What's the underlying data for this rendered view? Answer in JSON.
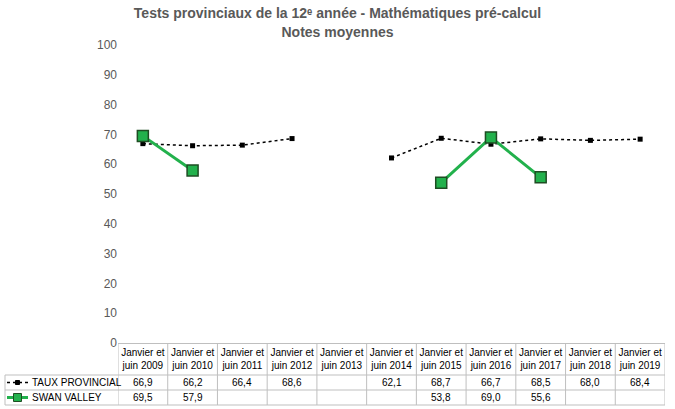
{
  "chart_data": {
    "type": "line",
    "title": "Tests provinciaux de la 12ᵉ année - Mathématiques pré-calcul",
    "subtitle": "Notes moyennes",
    "categories": [
      "Janvier et juin 2009",
      "Janvier et juin 2010",
      "Janvier et juin 2011",
      "Janvier et juin 2012",
      "Janvier et juin 2013",
      "Janvier et juin 2014",
      "Janvier et juin 2015",
      "Janvier et juin 2016",
      "Janvier et juin 2017",
      "Janvier et juin 2018",
      "Janvier et juin 2019"
    ],
    "series": [
      {
        "name": "TAUX PROVINCIAL",
        "color": "#000000",
        "marker": "square",
        "line_style": "dotted",
        "values": [
          66.9,
          66.2,
          66.4,
          68.6,
          null,
          62.1,
          68.7,
          66.7,
          68.5,
          68.0,
          68.4
        ],
        "value_labels": [
          "66,9",
          "66,2",
          "66,4",
          "68,6",
          null,
          "62,1",
          "68,7",
          "66,7",
          "68,5",
          "68,0",
          "68,4"
        ]
      },
      {
        "name": "SWAN VALLEY",
        "color": "#22b14c",
        "marker": "square",
        "line_style": "solid",
        "values": [
          69.5,
          57.9,
          null,
          null,
          null,
          null,
          53.8,
          69.0,
          55.6,
          null,
          null
        ],
        "value_labels": [
          "69,5",
          "57,9",
          null,
          null,
          null,
          null,
          "53,8",
          "69,0",
          "55,6",
          null,
          null
        ]
      }
    ],
    "ylim": [
      0,
      100
    ],
    "yticks": [
      0,
      10,
      20,
      30,
      40,
      50,
      60,
      70,
      80,
      90,
      100
    ],
    "grid": false
  }
}
